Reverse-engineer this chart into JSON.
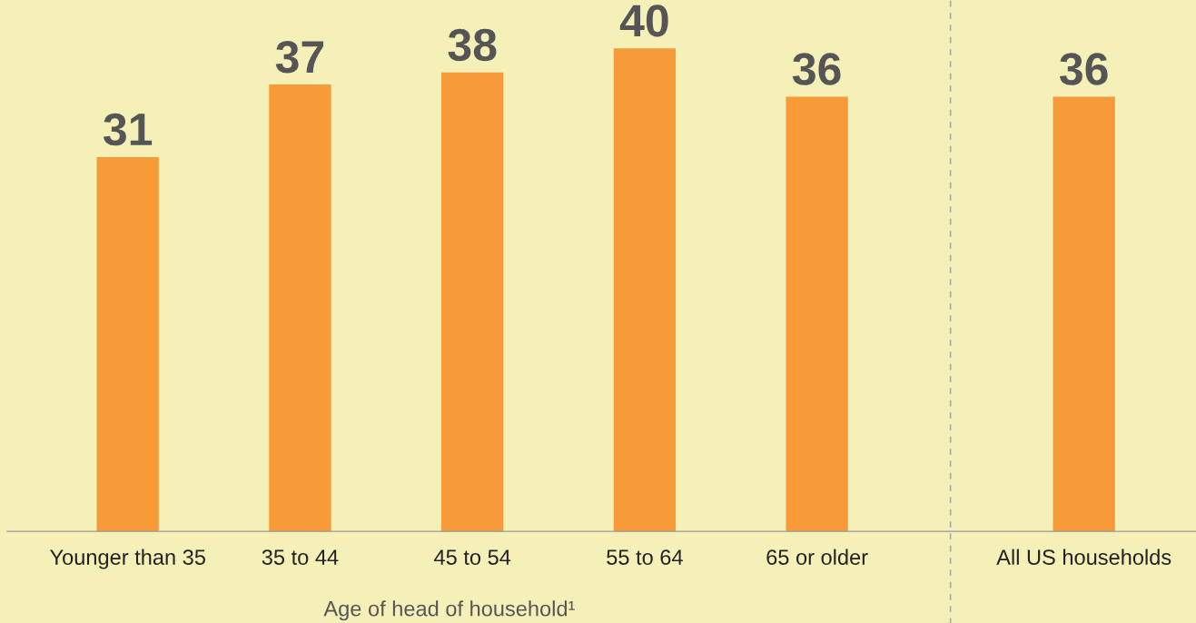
{
  "chart_data": {
    "type": "bar",
    "xlabel": "Age of head of household¹",
    "categories": [
      "Younger than 35",
      "35 to 44",
      "45 to 54",
      "55 to 64",
      "65 or older",
      "All US households"
    ],
    "values": [
      31,
      37,
      38,
      40,
      36,
      36
    ],
    "color": "#f79b38",
    "data_labels": true,
    "ylim": [
      0,
      44
    ],
    "tick_labels": "x",
    "grid": false,
    "legend": false
  }
}
